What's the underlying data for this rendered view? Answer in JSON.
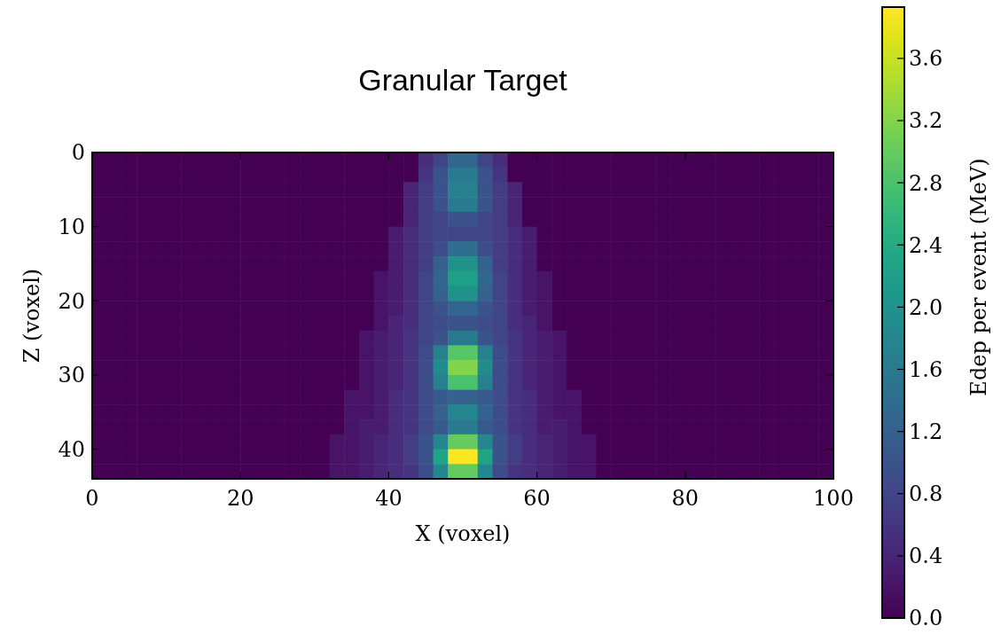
{
  "chart_data": {
    "type": "heatmap",
    "title": "Granular Target",
    "xlabel": "X (voxel)",
    "ylabel": "Z (voxel)",
    "clabel": "Edep per event (MeV)",
    "xlim": [
      0,
      100
    ],
    "ylim": [
      44,
      0
    ],
    "xticks": [
      0,
      20,
      40,
      60,
      80,
      100
    ],
    "yticks": [
      0,
      10,
      20,
      30,
      40
    ],
    "clim": [
      0,
      3.93
    ],
    "cticks": [
      {
        "value": 0,
        "label": "0.0"
      },
      0.4,
      0.8,
      1.2,
      1.6,
      {
        "value": 2,
        "label": "2.0"
      },
      2.4,
      2.8,
      3.2,
      3.6
    ],
    "cells": [
      [
        0,
        0,
        0,
        0,
        0,
        0,
        0,
        0,
        0,
        0,
        0,
        0,
        0,
        0,
        0,
        0,
        0,
        0,
        0,
        0,
        0,
        0,
        0.5,
        0.8,
        1.3,
        1.3,
        0.8,
        0.5,
        0,
        0,
        0,
        0,
        0,
        0,
        0,
        0,
        0,
        0,
        0,
        0,
        0,
        0,
        0,
        0,
        0,
        0,
        0,
        0,
        0,
        0
      ],
      [
        0,
        0,
        0,
        0,
        0,
        0,
        0,
        0,
        0,
        0,
        0,
        0,
        0,
        0,
        0,
        0,
        0,
        0,
        0,
        0,
        0,
        0,
        0.6,
        1.0,
        1.6,
        1.6,
        1.0,
        0.6,
        0,
        0,
        0,
        0,
        0,
        0,
        0,
        0,
        0,
        0,
        0,
        0,
        0,
        0,
        0,
        0,
        0,
        0,
        0,
        0,
        0,
        0
      ],
      [
        0,
        0,
        0,
        0,
        0,
        0,
        0,
        0,
        0,
        0,
        0,
        0,
        0,
        0,
        0,
        0,
        0,
        0,
        0,
        0,
        0,
        0.4,
        0.7,
        1.0,
        1.7,
        1.7,
        1.0,
        0.7,
        0.4,
        0,
        0,
        0,
        0,
        0,
        0,
        0,
        0,
        0,
        0,
        0,
        0,
        0,
        0,
        0,
        0,
        0,
        0,
        0,
        0,
        0
      ],
      [
        0,
        0,
        0,
        0,
        0,
        0,
        0,
        0,
        0,
        0,
        0,
        0,
        0,
        0,
        0,
        0,
        0,
        0,
        0,
        0,
        0,
        0.4,
        0.7,
        1.0,
        1.6,
        1.6,
        1.0,
        0.7,
        0.4,
        0,
        0,
        0,
        0,
        0,
        0,
        0,
        0,
        0,
        0,
        0,
        0,
        0,
        0,
        0,
        0,
        0,
        0,
        0,
        0,
        0
      ],
      [
        0,
        0,
        0,
        0,
        0,
        0,
        0,
        0,
        0,
        0,
        0,
        0,
        0,
        0,
        0,
        0,
        0,
        0,
        0,
        0,
        0,
        0.4,
        0.7,
        0.8,
        1.0,
        1.0,
        0.8,
        0.7,
        0.4,
        0,
        0,
        0,
        0,
        0,
        0,
        0,
        0,
        0,
        0,
        0,
        0,
        0,
        0,
        0,
        0,
        0,
        0,
        0,
        0,
        0
      ],
      [
        0,
        0,
        0,
        0,
        0,
        0,
        0,
        0,
        0,
        0,
        0,
        0,
        0,
        0,
        0,
        0,
        0,
        0,
        0,
        0,
        0.3,
        0.5,
        0.7,
        0.8,
        0.8,
        0.8,
        0.8,
        0.7,
        0.5,
        0.3,
        0,
        0,
        0,
        0,
        0,
        0,
        0,
        0,
        0,
        0,
        0,
        0,
        0,
        0,
        0,
        0,
        0,
        0,
        0,
        0
      ],
      [
        0,
        0,
        0,
        0,
        0,
        0,
        0,
        0,
        0,
        0,
        0,
        0,
        0,
        0,
        0,
        0,
        0,
        0,
        0,
        0,
        0.3,
        0.5,
        0.7,
        0.9,
        1.4,
        1.4,
        0.9,
        0.7,
        0.5,
        0.3,
        0,
        0,
        0,
        0,
        0,
        0,
        0,
        0,
        0,
        0,
        0,
        0,
        0,
        0,
        0,
        0,
        0,
        0,
        0,
        0
      ],
      [
        0,
        0,
        0,
        0,
        0,
        0,
        0,
        0,
        0,
        0,
        0,
        0,
        0,
        0,
        0,
        0,
        0,
        0,
        0,
        0,
        0.3,
        0.5,
        0.7,
        1.2,
        2.0,
        2.0,
        1.2,
        0.7,
        0.5,
        0.3,
        0,
        0,
        0,
        0,
        0,
        0,
        0,
        0,
        0,
        0,
        0,
        0,
        0,
        0,
        0,
        0,
        0,
        0,
        0,
        0
      ],
      [
        0,
        0,
        0,
        0,
        0,
        0,
        0,
        0,
        0,
        0,
        0,
        0,
        0,
        0,
        0,
        0,
        0,
        0,
        0,
        0.2,
        0.3,
        0.5,
        0.8,
        1.3,
        2.2,
        2.2,
        1.3,
        0.8,
        0.5,
        0.3,
        0.2,
        0,
        0,
        0,
        0,
        0,
        0,
        0,
        0,
        0,
        0,
        0,
        0,
        0,
        0,
        0,
        0,
        0,
        0,
        0
      ],
      [
        0,
        0,
        0,
        0,
        0,
        0,
        0,
        0,
        0,
        0,
        0,
        0,
        0,
        0,
        0,
        0,
        0,
        0,
        0,
        0.2,
        0.3,
        0.5,
        0.8,
        1.2,
        2.0,
        2.0,
        1.2,
        0.8,
        0.5,
        0.3,
        0.2,
        0,
        0,
        0,
        0,
        0,
        0,
        0,
        0,
        0,
        0,
        0,
        0,
        0,
        0,
        0,
        0,
        0,
        0,
        0
      ],
      [
        0,
        0,
        0,
        0,
        0,
        0,
        0,
        0,
        0,
        0,
        0,
        0,
        0,
        0,
        0,
        0,
        0,
        0,
        0,
        0.2,
        0.3,
        0.5,
        0.8,
        1.0,
        1.3,
        1.3,
        1.0,
        0.8,
        0.5,
        0.3,
        0.2,
        0,
        0,
        0,
        0,
        0,
        0,
        0,
        0,
        0,
        0,
        0,
        0,
        0,
        0,
        0,
        0,
        0,
        0,
        0
      ],
      [
        0,
        0,
        0,
        0,
        0,
        0,
        0,
        0,
        0,
        0,
        0,
        0,
        0,
        0,
        0,
        0,
        0,
        0,
        0,
        0.2,
        0.4,
        0.5,
        0.8,
        0.9,
        1.0,
        1.0,
        0.9,
        0.8,
        0.5,
        0.4,
        0.2,
        0,
        0,
        0,
        0,
        0,
        0,
        0,
        0,
        0,
        0,
        0,
        0,
        0,
        0,
        0,
        0,
        0,
        0,
        0
      ],
      [
        0,
        0,
        0,
        0,
        0,
        0,
        0,
        0,
        0,
        0,
        0,
        0,
        0,
        0,
        0,
        0,
        0,
        0,
        0.2,
        0.3,
        0.4,
        0.6,
        0.8,
        1.0,
        1.6,
        1.6,
        1.0,
        0.8,
        0.6,
        0.4,
        0.3,
        0.2,
        0,
        0,
        0,
        0,
        0,
        0,
        0,
        0,
        0,
        0,
        0,
        0,
        0,
        0,
        0,
        0,
        0,
        0
      ],
      [
        0,
        0,
        0,
        0,
        0,
        0,
        0,
        0,
        0,
        0,
        0,
        0,
        0,
        0,
        0,
        0,
        0,
        0,
        0.2,
        0.3,
        0.4,
        0.6,
        0.9,
        1.7,
        2.9,
        2.9,
        1.7,
        0.9,
        0.6,
        0.4,
        0.3,
        0.2,
        0,
        0,
        0,
        0,
        0,
        0,
        0,
        0,
        0,
        0,
        0,
        0,
        0,
        0,
        0,
        0,
        0,
        0
      ],
      [
        0,
        0,
        0,
        0,
        0,
        0,
        0,
        0,
        0,
        0,
        0,
        0,
        0,
        0,
        0,
        0,
        0,
        0,
        0.2,
        0.3,
        0.4,
        0.6,
        0.9,
        1.9,
        3.2,
        3.2,
        1.9,
        0.9,
        0.6,
        0.4,
        0.3,
        0.2,
        0,
        0,
        0,
        0,
        0,
        0,
        0,
        0,
        0,
        0,
        0,
        0,
        0,
        0,
        0,
        0,
        0,
        0
      ],
      [
        0,
        0,
        0,
        0,
        0,
        0,
        0,
        0,
        0,
        0,
        0,
        0,
        0,
        0,
        0,
        0,
        0,
        0,
        0.2,
        0.3,
        0.4,
        0.6,
        0.9,
        1.7,
        2.8,
        2.8,
        1.7,
        0.9,
        0.6,
        0.4,
        0.3,
        0.2,
        0,
        0,
        0,
        0,
        0,
        0,
        0,
        0,
        0,
        0,
        0,
        0,
        0,
        0,
        0,
        0,
        0,
        0
      ],
      [
        0,
        0,
        0,
        0,
        0,
        0,
        0,
        0,
        0,
        0,
        0,
        0,
        0,
        0,
        0,
        0,
        0,
        0.2,
        0.2,
        0.3,
        0.5,
        0.6,
        0.9,
        1.1,
        1.2,
        1.2,
        1.1,
        0.9,
        0.6,
        0.5,
        0.3,
        0.2,
        0.2,
        0,
        0,
        0,
        0,
        0,
        0,
        0,
        0,
        0,
        0,
        0,
        0,
        0,
        0,
        0,
        0,
        0
      ],
      [
        0,
        0,
        0,
        0,
        0,
        0,
        0,
        0,
        0,
        0,
        0,
        0,
        0,
        0,
        0,
        0,
        0,
        0.2,
        0.2,
        0.3,
        0.5,
        0.6,
        0.9,
        1.2,
        1.8,
        1.8,
        1.2,
        0.9,
        0.6,
        0.5,
        0.3,
        0.2,
        0.2,
        0,
        0,
        0,
        0,
        0,
        0,
        0,
        0,
        0,
        0,
        0,
        0,
        0,
        0,
        0,
        0,
        0
      ],
      [
        0,
        0,
        0,
        0,
        0,
        0,
        0,
        0,
        0,
        0,
        0,
        0,
        0,
        0,
        0,
        0,
        0,
        0.2,
        0.3,
        0.3,
        0.5,
        0.6,
        0.9,
        1.1,
        1.6,
        1.6,
        1.1,
        0.9,
        0.6,
        0.5,
        0.3,
        0.3,
        0.2,
        0,
        0,
        0,
        0,
        0,
        0,
        0,
        0,
        0,
        0,
        0,
        0,
        0,
        0,
        0,
        0,
        0
      ],
      [
        0,
        0,
        0,
        0,
        0,
        0,
        0,
        0,
        0,
        0,
        0,
        0,
        0,
        0,
        0,
        0,
        0.2,
        0.2,
        0.3,
        0.4,
        0.5,
        0.7,
        1.0,
        1.8,
        3.0,
        3.0,
        1.8,
        1.0,
        0.7,
        0.5,
        0.4,
        0.3,
        0.2,
        0.2,
        0,
        0,
        0,
        0,
        0,
        0,
        0,
        0,
        0,
        0,
        0,
        0,
        0,
        0,
        0,
        0
      ],
      [
        0,
        0,
        0,
        0,
        0,
        0,
        0,
        0,
        0,
        0,
        0,
        0,
        0,
        0,
        0,
        0,
        0.2,
        0.2,
        0.3,
        0.4,
        0.5,
        0.7,
        1.0,
        2.3,
        3.9,
        3.9,
        2.3,
        1.0,
        0.7,
        0.5,
        0.4,
        0.3,
        0.2,
        0.2,
        0,
        0,
        0,
        0,
        0,
        0,
        0,
        0,
        0,
        0,
        0,
        0,
        0,
        0,
        0,
        0
      ],
      [
        0,
        0,
        0,
        0,
        0,
        0,
        0,
        0,
        0,
        0,
        0,
        0,
        0,
        0,
        0,
        0,
        0.2,
        0.2,
        0.3,
        0.4,
        0.5,
        0.6,
        0.9,
        1.8,
        3.0,
        3.0,
        1.8,
        0.9,
        0.6,
        0.5,
        0.4,
        0.3,
        0.2,
        0.2,
        0,
        0,
        0,
        0,
        0,
        0,
        0,
        0,
        0,
        0,
        0,
        0,
        0,
        0,
        0,
        0
      ]
    ]
  }
}
